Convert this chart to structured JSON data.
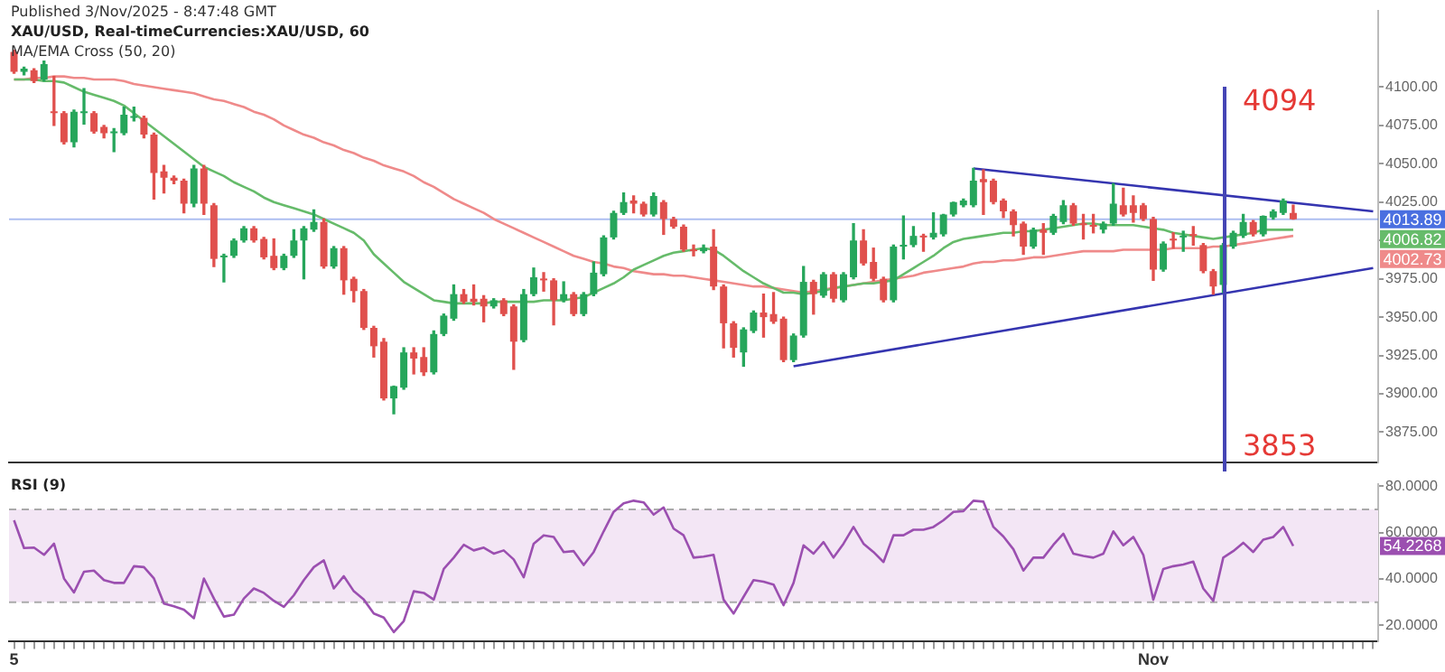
{
  "chart_data": [
    {
      "type": "candlestick",
      "title": "XAU/USD, Real-timeCurrencies:XAU/USD, 60",
      "annotations": [
        "Published 3/Nov/2025 - 8:47:48 GMT",
        "MA/EMA Cross (50, 20)",
        "4094",
        "3853",
        "4006.82",
        "4002.73"
      ],
      "categories": [
        null,
        null,
        null,
        null,
        null,
        null,
        null,
        null,
        null,
        null,
        null,
        null,
        null,
        null,
        null,
        null,
        null,
        null,
        null,
        null,
        null,
        null,
        null,
        null,
        null,
        null,
        null,
        null,
        null,
        null,
        null,
        null,
        null,
        null,
        null,
        null,
        null,
        null,
        null,
        null,
        null,
        null,
        null,
        null,
        null,
        null,
        null,
        null,
        null,
        null,
        null,
        null,
        null,
        null,
        null,
        null,
        null,
        null,
        null,
        null,
        null,
        null,
        null,
        null,
        null,
        null,
        null,
        null,
        null,
        null,
        null,
        null,
        null,
        null,
        null,
        null,
        null,
        null,
        null,
        null,
        null,
        null,
        null,
        null,
        null,
        null,
        null,
        null,
        null,
        null,
        null,
        null,
        null,
        null,
        null,
        null,
        null,
        null,
        null,
        null,
        null,
        null,
        null,
        null,
        null,
        null,
        null,
        null,
        null,
        null,
        null,
        null,
        null,
        null,
        null,
        null,
        null,
        null,
        null,
        null,
        null,
        null,
        null,
        null,
        null,
        null,
        null,
        null,
        null,
        null,
        null,
        null,
        null,
        null,
        null,
        null,
        null
      ],
      "ohlc": [
        [
          4123,
          4124,
          4109,
          4110
        ],
        [
          4110,
          4113,
          4108,
          4112
        ],
        [
          4111,
          4112,
          4103,
          4104
        ],
        [
          4105,
          4117,
          4104,
          4115
        ],
        [
          4084,
          4107,
          4075,
          4083
        ],
        [
          4083,
          4084,
          4063,
          4064
        ],
        [
          4064,
          4085,
          4061,
          4084
        ],
        [
          4083,
          4099,
          4076,
          4084
        ],
        [
          4083,
          4084,
          4070,
          4071
        ],
        [
          4074,
          4075,
          4067,
          4070
        ],
        [
          4070,
          4073,
          4058,
          4071
        ],
        [
          4070,
          4087,
          4069,
          4082
        ],
        [
          4080,
          4087,
          4078,
          4081
        ],
        [
          4080,
          4081,
          4067,
          4069
        ],
        [
          4069,
          4070,
          4027,
          4044
        ],
        [
          4045,
          4049,
          4031,
          4041
        ],
        [
          4041,
          4042,
          4037,
          4039
        ],
        [
          4039,
          4040,
          4018,
          4024
        ],
        [
          4024,
          4049,
          4022,
          4047
        ],
        [
          4047,
          4049,
          4017,
          4024
        ],
        [
          4023,
          4024,
          3983,
          3988
        ],
        [
          3989,
          3991,
          3973,
          3990
        ],
        [
          3990,
          4001,
          3989,
          4000
        ],
        [
          4000,
          4009,
          3999,
          4008
        ],
        [
          4008,
          4009,
          3999,
          4000
        ],
        [
          4001,
          4002,
          3988,
          3989
        ],
        [
          3990,
          4001,
          3981,
          3982
        ],
        [
          3982,
          3991,
          3981,
          3990
        ],
        [
          3990,
          4007,
          3989,
          4000
        ],
        [
          4000,
          4009,
          3975,
          4008
        ],
        [
          4007,
          4020,
          4006,
          4012
        ],
        [
          4012,
          4014,
          3982,
          3983
        ],
        [
          3983,
          3996,
          3982,
          3995
        ],
        [
          3995,
          3996,
          3965,
          3974
        ],
        [
          3975,
          3976,
          3960,
          3967
        ],
        [
          3967,
          3968,
          3942,
          3943
        ],
        [
          3943,
          3944,
          3924,
          3931
        ],
        [
          3934,
          3936,
          3896,
          3897
        ],
        [
          3897,
          3905,
          3887,
          3905
        ],
        [
          3904,
          3930,
          3903,
          3927
        ],
        [
          3927,
          3930,
          3913,
          3923
        ],
        [
          3924,
          3930,
          3912,
          3914
        ],
        [
          3914,
          3941,
          3913,
          3939
        ],
        [
          3939,
          3952,
          3938,
          3951
        ],
        [
          3949,
          3971,
          3948,
          3965
        ],
        [
          3965,
          3968,
          3959,
          3960
        ],
        [
          3962,
          3971,
          3958,
          3960
        ],
        [
          3962,
          3964,
          3947,
          3957
        ],
        [
          3957,
          3962,
          3956,
          3961
        ],
        [
          3961,
          3962,
          3951,
          3952
        ],
        [
          3957,
          3958,
          3916,
          3934
        ],
        [
          3935,
          3968,
          3934,
          3965
        ],
        [
          3965,
          3982,
          3964,
          3976
        ],
        [
          3975,
          3979,
          3967,
          3974
        ],
        [
          3974,
          3975,
          3945,
          3961
        ],
        [
          3961,
          3973,
          3960,
          3965
        ],
        [
          3965,
          3966,
          3951,
          3952
        ],
        [
          3952,
          3966,
          3951,
          3965
        ],
        [
          3965,
          3986,
          3964,
          3979
        ],
        [
          3978,
          4003,
          3977,
          4002
        ],
        [
          4002,
          4019,
          4001,
          4018
        ],
        [
          4018,
          4031,
          4017,
          4025
        ],
        [
          4026,
          4029,
          4018,
          4024
        ],
        [
          4024,
          4025,
          4016,
          4017
        ],
        [
          4017,
          4031,
          4016,
          4029
        ],
        [
          4025,
          4026,
          4004,
          4014
        ],
        [
          4014,
          4015,
          4008,
          4009
        ],
        [
          4009,
          4010,
          3993,
          3994
        ],
        [
          3994,
          3997,
          3990,
          3993
        ],
        [
          3993,
          3997,
          3992,
          3995
        ],
        [
          3996,
          4007,
          3968,
          3970
        ],
        [
          3970,
          3971,
          3930,
          3946
        ],
        [
          3946,
          3947,
          3924,
          3930
        ],
        [
          3927,
          3943,
          3918,
          3942
        ],
        [
          3941,
          3954,
          3940,
          3953
        ],
        [
          3953,
          3965,
          3937,
          3950
        ],
        [
          3952,
          3966,
          3946,
          3947
        ],
        [
          3949,
          3950,
          3921,
          3922
        ],
        [
          3922,
          3939,
          3921,
          3938
        ],
        [
          3938,
          3983,
          3937,
          3973
        ],
        [
          3973,
          3974,
          3952,
          3965
        ],
        [
          3964,
          3979,
          3963,
          3978
        ],
        [
          3978,
          3979,
          3960,
          3962
        ],
        [
          3961,
          3979,
          3960,
          3978
        ],
        [
          3976,
          4011,
          3975,
          4000
        ],
        [
          4000,
          4007,
          3984,
          3985
        ],
        [
          3986,
          3995,
          3974,
          3975
        ],
        [
          3975,
          3976,
          3960,
          3961
        ],
        [
          3961,
          3997,
          3960,
          3996
        ],
        [
          3996,
          4016,
          3988,
          3997
        ],
        [
          3997,
          4009,
          3996,
          4003
        ],
        [
          4003,
          4004,
          3993,
          4002
        ],
        [
          4002,
          4018,
          4001,
          4005
        ],
        [
          4004,
          4017,
          4003,
          4017
        ],
        [
          4017,
          4025,
          4016,
          4025
        ],
        [
          4023,
          4027,
          4022,
          4026
        ],
        [
          4023,
          4047,
          4022,
          4039
        ],
        [
          4040,
          4046,
          4017,
          4038
        ],
        [
          4039,
          4040,
          4024,
          4025
        ],
        [
          4026,
          4027,
          4015,
          4019
        ],
        [
          4019,
          4020,
          4003,
          4010
        ],
        [
          4011,
          4012,
          3991,
          3996
        ],
        [
          3996,
          4008,
          3995,
          4007
        ],
        [
          4007,
          4011,
          3991,
          4005
        ],
        [
          4005,
          4017,
          4004,
          4016
        ],
        [
          4012,
          4026,
          4011,
          4023
        ],
        [
          4023,
          4024,
          4010,
          4011
        ],
        [
          4011,
          4017,
          4001,
          4010
        ],
        [
          4010,
          4017,
          4005,
          4009
        ],
        [
          4007,
          4012,
          4005,
          4011
        ],
        [
          4011,
          4037,
          4010,
          4024
        ],
        [
          4023,
          4034,
          4016,
          4017
        ],
        [
          4023,
          4029,
          4012,
          4018
        ],
        [
          4023,
          4024,
          4013,
          4014
        ],
        [
          4014,
          4015,
          3974,
          3981
        ],
        [
          3981,
          3999,
          3980,
          3998
        ],
        [
          4001,
          4005,
          3995,
          4000
        ],
        [
          4002,
          4006,
          3993,
          4003
        ],
        [
          4004,
          4009,
          3997,
          4003
        ],
        [
          3997,
          3998,
          3979,
          3980
        ],
        [
          3980,
          3981,
          3965,
          3970
        ],
        [
          3971,
          3998,
          3966,
          3997
        ],
        [
          3996,
          4006,
          3995,
          4005
        ],
        [
          4003,
          4017,
          4002,
          4012
        ],
        [
          4012,
          4013,
          4003,
          4004
        ],
        [
          4004,
          4016,
          4003,
          4016
        ],
        [
          4015,
          4020,
          4014,
          4019
        ],
        [
          4018,
          4027,
          4017,
          4026
        ],
        [
          4018,
          4023,
          4013.89,
          4013.89
        ],
        null,
        null,
        null,
        null,
        null,
        null,
        null,
        null
      ],
      "colors": [
        "#e0504d",
        "#26a65b",
        "#e0504d",
        "#26a65b",
        "#e0504d",
        "#e0504d",
        "#26a65b",
        "#26a65b",
        "#e0504d",
        "#e0504d",
        "#26a65b",
        "#26a65b",
        "#26a65b",
        "#e0504d",
        "#e0504d",
        "#e0504d",
        "#e0504d",
        "#e0504d",
        "#26a65b",
        "#e0504d",
        "#e0504d",
        "#26a65b",
        "#26a65b",
        "#26a65b",
        "#e0504d",
        "#e0504d",
        "#e0504d",
        "#26a65b",
        "#26a65b",
        "#26a65b",
        "#26a65b",
        "#e0504d",
        "#26a65b",
        "#e0504d",
        "#e0504d",
        "#e0504d",
        "#e0504d",
        "#e0504d",
        "#26a65b",
        "#26a65b",
        "#e0504d",
        "#e0504d",
        "#26a65b",
        "#26a65b",
        "#26a65b",
        "#e0504d",
        "#e0504d",
        "#e0504d",
        "#26a65b",
        "#e0504d",
        "#e0504d",
        "#26a65b",
        "#26a65b",
        "#e0504d",
        "#e0504d",
        "#26a65b",
        "#e0504d",
        "#26a65b",
        "#26a65b",
        "#26a65b",
        "#26a65b",
        "#26a65b",
        "#e0504d",
        "#e0504d",
        "#26a65b",
        "#e0504d",
        "#e0504d",
        "#e0504d",
        "#e0504d",
        "#26a65b",
        "#e0504d",
        "#e0504d",
        "#e0504d",
        "#26a65b",
        "#26a65b",
        "#e0504d",
        "#e0504d",
        "#e0504d",
        "#26a65b",
        "#26a65b",
        "#e0504d",
        "#26a65b",
        "#e0504d",
        "#26a65b",
        "#26a65b",
        "#e0504d",
        "#e0504d",
        "#e0504d",
        "#26a65b",
        "#26a65b",
        "#26a65b",
        "#e0504d",
        "#26a65b",
        "#26a65b",
        "#26a65b",
        "#26a65b",
        "#26a65b",
        "#e0504d",
        "#e0504d",
        "#e0504d",
        "#e0504d",
        "#e0504d",
        "#26a65b",
        "#e0504d",
        "#26a65b",
        "#26a65b",
        "#e0504d",
        "#e0504d",
        "#e0504d",
        "#26a65b",
        "#26a65b",
        "#e0504d",
        "#e0504d",
        "#e0504d",
        "#e0504d",
        "#26a65b",
        "#e0504d",
        "#26a65b",
        "#e0504d",
        "#e0504d",
        "#e0504d",
        "#26a65b",
        "#26a65b",
        "#26a65b",
        "#e0504d",
        "#26a65b",
        "#26a65b",
        "#26a65b",
        "#e0504d",
        null,
        null,
        null,
        null,
        null,
        null,
        null,
        null
      ],
      "series": [
        {
          "type": "line",
          "color": "#66bb6a",
          "values": [
            4105,
            4105,
            4105,
            4104,
            4104,
            4103,
            4100,
            4097,
            4095,
            4093,
            4091,
            4088,
            4083,
            4078,
            4073,
            4068,
            4063,
            4058,
            4053,
            4048,
            4045,
            4042,
            4038,
            4035,
            4032,
            4028,
            4025,
            4023,
            4021,
            4019,
            4017,
            4014,
            4011,
            4008,
            4005,
            4000,
            3991,
            3985,
            3979,
            3973,
            3969,
            3965,
            3961,
            3960,
            3959,
            3959,
            3959,
            3959,
            3960,
            3960,
            3960,
            3960,
            3960,
            3961,
            3961,
            3961,
            3962,
            3963,
            3966,
            3969,
            3972,
            3976,
            3981,
            3984,
            3987,
            3990,
            3992,
            3993,
            3994,
            3995,
            3994,
            3990,
            3985,
            3980,
            3976,
            3972,
            3969,
            3966,
            3966,
            3965,
            3966,
            3967,
            3969,
            3970,
            3971,
            3972,
            3972,
            3973,
            3974,
            3978,
            3982,
            3986,
            3990,
            3995,
            3999,
            4001,
            4002,
            4003,
            4004,
            4005,
            4005,
            4006,
            4006,
            4007,
            4008,
            4009,
            4010,
            4011,
            4011,
            4010,
            4010,
            4010,
            4010,
            4009,
            4008,
            4007,
            4005,
            4004,
            4003,
            4002,
            4001,
            4002,
            4003,
            4004,
            4005,
            4007,
            4007,
            4007,
            4007,
            null,
            null,
            null,
            null,
            null,
            null,
            null,
            null
          ]
        },
        {
          "type": "line",
          "color": "#ef8a8a",
          "values": [
            4105,
            4105,
            4106,
            4106,
            4107,
            4107,
            4106,
            4106,
            4105,
            4105,
            4105,
            4104,
            4102,
            4101,
            4100,
            4099,
            4098,
            4097,
            4096,
            4094,
            4092,
            4091,
            4089,
            4087,
            4084,
            4082,
            4079,
            4075,
            4072,
            4069,
            4067,
            4064,
            4062,
            4059,
            4057,
            4054,
            4052,
            4049,
            4047,
            4045,
            4042,
            4038,
            4035,
            4031,
            4027,
            4024,
            4021,
            4018,
            4014,
            4011,
            4008,
            4005,
            4002,
            3999,
            3996,
            3993,
            3990,
            3988,
            3986,
            3985,
            3983,
            3982,
            3980,
            3979,
            3978,
            3978,
            3977,
            3977,
            3976,
            3975,
            3974,
            3973,
            3972,
            3971,
            3970,
            3970,
            3969,
            3968,
            3967,
            3966,
            3967,
            3968,
            3969,
            3970,
            3971,
            3972,
            3973,
            3974,
            3975,
            3976,
            3977,
            3979,
            3980,
            3981,
            3982,
            3983,
            3985,
            3986,
            3986,
            3987,
            3987,
            3988,
            3989,
            3989,
            3990,
            3991,
            3992,
            3993,
            3993,
            3993,
            3993,
            3994,
            3994,
            3994,
            3994,
            3994,
            3995,
            3995,
            3995,
            3995,
            3996,
            3996,
            3997,
            3998,
            3999,
            4000,
            4001,
            4002,
            4003,
            null,
            null,
            null,
            null,
            null,
            null,
            null,
            null
          ]
        },
        {
          "type": "line",
          "color": "#3535b0",
          "values": [
            null,
            null,
            null,
            null,
            null,
            null,
            null,
            null,
            null,
            null,
            null,
            null,
            null,
            null,
            null,
            null,
            null,
            null,
            null,
            null,
            null,
            null,
            null,
            null,
            null,
            null,
            null,
            null,
            null,
            null,
            null,
            null,
            null,
            null,
            null,
            null,
            null,
            null,
            null,
            null,
            null,
            null,
            null,
            null,
            null,
            null,
            null,
            null,
            null,
            null,
            null,
            null,
            null,
            null,
            null,
            null,
            null,
            null,
            null,
            null,
            null,
            null,
            null,
            null,
            null,
            null,
            null,
            null,
            null,
            null,
            null,
            null,
            null,
            null,
            null,
            null,
            null,
            null,
            null,
            null,
            null,
            null,
            null,
            null,
            null,
            null,
            null,
            null,
            null,
            null,
            null,
            null,
            null,
            null,
            null,
            null,
            4047,
            null,
            null,
            null,
            null,
            null,
            null,
            null,
            null,
            null,
            null,
            null,
            null,
            null,
            null,
            null,
            null,
            null,
            null,
            null,
            null,
            null,
            null,
            null,
            null,
            null,
            null,
            null,
            null,
            null,
            null,
            null,
            null,
            null,
            null,
            null,
            null,
            null,
            null,
            null,
            4019
          ]
        },
        {
          "type": "line",
          "color": "#3535b0",
          "values": [
            null,
            null,
            null,
            null,
            null,
            null,
            null,
            null,
            null,
            null,
            null,
            null,
            null,
            null,
            null,
            null,
            null,
            null,
            null,
            null,
            null,
            null,
            null,
            null,
            null,
            null,
            null,
            null,
            null,
            null,
            null,
            null,
            null,
            null,
            null,
            null,
            null,
            null,
            null,
            null,
            null,
            null,
            null,
            null,
            null,
            null,
            null,
            null,
            null,
            null,
            null,
            null,
            null,
            null,
            null,
            null,
            null,
            null,
            null,
            null,
            null,
            null,
            null,
            null,
            null,
            null,
            null,
            null,
            null,
            null,
            null,
            null,
            null,
            null,
            null,
            null,
            null,
            null,
            3918,
            null,
            null,
            null,
            null,
            null,
            null,
            null,
            null,
            null,
            null,
            null,
            null,
            null,
            null,
            null,
            null,
            null,
            null,
            null,
            null,
            null,
            null,
            null,
            null,
            null,
            null,
            null,
            null,
            null,
            null,
            null,
            null,
            null,
            null,
            null,
            null,
            null,
            null,
            null,
            null,
            null,
            null,
            null,
            null,
            null,
            null,
            null,
            null,
            null,
            null,
            null,
            null,
            null,
            null,
            null,
            null,
            null,
            3982
          ]
        }
      ],
      "ylim": [
        3855,
        4150
      ],
      "yticks": [
        {
          "value": 3875,
          "label": "3875.00"
        },
        {
          "value": 3900,
          "label": "3900.00"
        },
        {
          "value": 3925,
          "label": "3925.00"
        },
        {
          "value": 3950,
          "label": "3950.00"
        },
        {
          "value": 3975,
          "label": "3975.00"
        },
        {
          "value": 4000,
          "label": null
        },
        {
          "value": 4025,
          "label": "4025.00"
        },
        {
          "value": 4050,
          "label": "4050.00"
        },
        {
          "value": 4075,
          "label": "4075.00"
        },
        {
          "value": 4100,
          "label": "4100.00"
        }
      ],
      "ref_lines": [
        {
          "axis": "y",
          "value": 4013.89,
          "label": "4013.89",
          "color": "#4a6fe0"
        }
      ],
      "tick_labels": "y",
      "grid": false,
      "legend": false,
      "marker": "none"
    },
    {
      "type": "line",
      "title": "RSI (9)",
      "annotations": [
        "54.2268"
      ],
      "categories": [
        "5",
        null,
        null,
        null,
        null,
        null,
        null,
        null,
        null,
        null,
        null,
        null,
        null,
        null,
        null,
        null,
        null,
        null,
        null,
        null,
        null,
        null,
        null,
        null,
        null,
        null,
        null,
        null,
        null,
        null,
        null,
        null,
        null,
        null,
        null,
        null,
        null,
        null,
        null,
        null,
        null,
        null,
        null,
        null,
        null,
        null,
        null,
        null,
        null,
        null,
        null,
        null,
        null,
        null,
        null,
        null,
        null,
        null,
        null,
        null,
        null,
        null,
        null,
        null,
        null,
        null,
        null,
        null,
        null,
        null,
        null,
        null,
        null,
        null,
        null,
        null,
        null,
        null,
        null,
        null,
        null,
        null,
        null,
        null,
        null,
        null,
        null,
        null,
        null,
        null,
        null,
        null,
        null,
        null,
        null,
        null,
        null,
        null,
        null,
        null,
        null,
        null,
        null,
        null,
        null,
        null,
        null,
        null,
        null,
        null,
        null,
        null,
        null,
        null,
        "Nov",
        null,
        null,
        null,
        null,
        null,
        null,
        null,
        null,
        null,
        null,
        null,
        null,
        null,
        null,
        null,
        null,
        null,
        null,
        null,
        null,
        null,
        null
      ],
      "series": [
        {
          "color": "#9b4fb0",
          "values": [
            65.3,
            53.3,
            53.5,
            50.4,
            55.2,
            40.2,
            34.2,
            43.1,
            43.6,
            39.5,
            38.3,
            38.3,
            45.5,
            45.1,
            40.2,
            29.4,
            28.2,
            26.8,
            23.1,
            40.2,
            31.6,
            23.8,
            24.6,
            31.6,
            35.9,
            34.0,
            30.6,
            28.0,
            33.0,
            39.5,
            45.1,
            48.0,
            35.9,
            41.2,
            34.7,
            31.1,
            25.1,
            23.4,
            17.1,
            21.9,
            34.7,
            34.0,
            31.1,
            44.3,
            49.2,
            54.7,
            52.3,
            53.5,
            50.9,
            52.3,
            48.4,
            40.7,
            55.2,
            58.8,
            58.1,
            51.6,
            52.0,
            46.0,
            51.6,
            60.5,
            68.9,
            72.6,
            73.7,
            73.0,
            67.7,
            70.8,
            61.7,
            58.8,
            49.2,
            49.6,
            50.4,
            31.1,
            25.1,
            32.3,
            39.5,
            38.8,
            37.6,
            28.7,
            38.3,
            54.5,
            50.9,
            55.9,
            49.2,
            55.2,
            62.4,
            55.2,
            51.6,
            47.3,
            58.8,
            58.8,
            61.2,
            61.2,
            62.4,
            65.3,
            68.9,
            69.2,
            73.7,
            73.3,
            62.4,
            58.3,
            52.8,
            43.6,
            49.2,
            49.2,
            54.7,
            59.5,
            50.9,
            49.9,
            49.2,
            50.9,
            60.5,
            54.5,
            58.1,
            50.4,
            31.1,
            44.3,
            45.5,
            46.2,
            47.5,
            35.9,
            30.6,
            49.2,
            52.0,
            55.6,
            51.6,
            56.9,
            58.1,
            62.4,
            54.2,
            null,
            null,
            null,
            null,
            null,
            null,
            null,
            null
          ]
        }
      ],
      "ylim": [
        13,
        81
      ],
      "yticks": [
        {
          "value": 20,
          "label": "20.0000"
        },
        {
          "value": 40,
          "label": "40.0000"
        },
        {
          "value": 60,
          "label": "60.0000"
        },
        {
          "value": 80,
          "label": "80.0000"
        }
      ],
      "bands": [
        {
          "axis": "y",
          "from": 30,
          "to": 70,
          "color": "#f3e6f5"
        }
      ],
      "ref_lines": [
        {
          "axis": "y",
          "value": 70,
          "color": "#aaaaaa",
          "line_style": "dashed"
        },
        {
          "axis": "y",
          "value": 30,
          "color": "#aaaaaa",
          "line_style": "dashed"
        }
      ],
      "grid": false,
      "legend": false,
      "marker": "none"
    }
  ]
}
